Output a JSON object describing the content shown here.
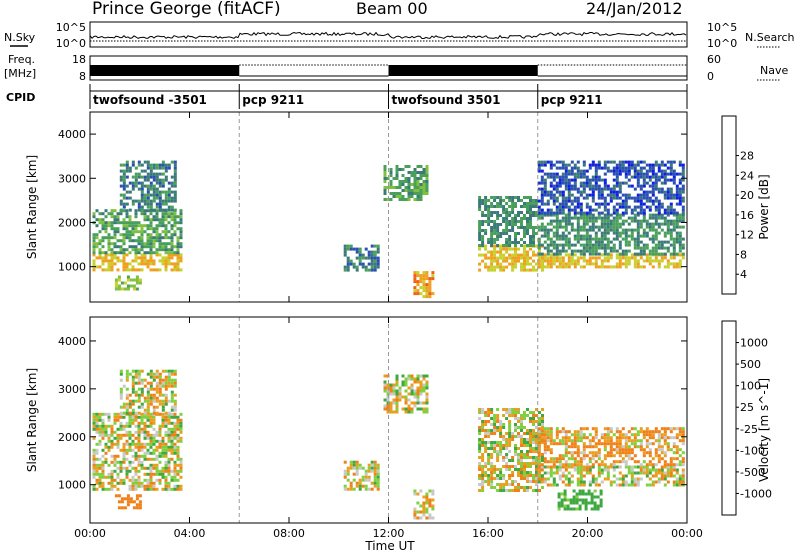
{
  "header": {
    "station": "Prince George (fitACF)",
    "beam": "Beam 00",
    "date": "24/Jan/2012"
  },
  "status_panel": {
    "left_labels": [
      "N.Sky",
      "Freq.",
      "[MHz]",
      "CPID"
    ],
    "right_labels": [
      "N.Search",
      "Nave"
    ],
    "left_ticks": [
      "10^5",
      "10^0",
      "18",
      "8"
    ],
    "right_ticks": [
      "10^5",
      "10^0",
      "60",
      "0"
    ],
    "cpid_segments": [
      {
        "label": "twofsound -3501",
        "start": 0,
        "end": 6
      },
      {
        "label": "pcp 9211",
        "start": 6,
        "end": 12
      },
      {
        "label": "twofsound 3501",
        "start": 12,
        "end": 18
      },
      {
        "label": "pcp 9211",
        "start": 18,
        "end": 24
      }
    ]
  },
  "x_axis": {
    "label": "Time UT",
    "ticks": [
      {
        "v": 0,
        "label": "00:00"
      },
      {
        "v": 4,
        "label": "04:00"
      },
      {
        "v": 8,
        "label": "08:00"
      },
      {
        "v": 12,
        "label": "12:00"
      },
      {
        "v": 16,
        "label": "16:00"
      },
      {
        "v": 20,
        "label": "20:00"
      },
      {
        "v": 24,
        "label": "00:00"
      }
    ]
  },
  "chart_data": [
    {
      "type": "heatmap",
      "title": "",
      "xlabel": "Time UT",
      "ylabel": "Slant Range [km]",
      "xlim": [
        0,
        24
      ],
      "ylim": [
        200,
        4500
      ],
      "yticks": [
        1000,
        2000,
        3000,
        4000
      ],
      "colorbar": {
        "label": "Power [dB]",
        "ticks": [
          4,
          8,
          12,
          16,
          20,
          24,
          28
        ],
        "colors": [
          "#1020e0",
          "#2a50b0",
          "#3b7a78",
          "#4aa05a",
          "#7fc040",
          "#c8d030",
          "#f0a020",
          "#f06018",
          "#e01010"
        ]
      },
      "bands": [
        {
          "t0": 0.1,
          "t1": 3.6,
          "r0": 900,
          "r1": 1300,
          "level": 24
        },
        {
          "t0": 0.1,
          "t1": 3.6,
          "r0": 1300,
          "r1": 2300,
          "level": 14
        },
        {
          "t0": 1.2,
          "t1": 3.4,
          "r0": 2300,
          "r1": 3400,
          "level": 10
        },
        {
          "t0": 1.0,
          "t1": 2.0,
          "r0": 500,
          "r1": 800,
          "level": 18
        },
        {
          "t0": 10.2,
          "t1": 11.6,
          "r0": 900,
          "r1": 1500,
          "level": 10
        },
        {
          "t0": 11.8,
          "t1": 13.6,
          "r0": 2500,
          "r1": 3300,
          "level": 14
        },
        {
          "t0": 13.0,
          "t1": 13.8,
          "r0": 300,
          "r1": 900,
          "level": 26
        },
        {
          "t0": 15.6,
          "t1": 18.2,
          "r0": 900,
          "r1": 1500,
          "level": 24
        },
        {
          "t0": 15.6,
          "t1": 18.0,
          "r0": 1500,
          "r1": 2600,
          "level": 12
        },
        {
          "t0": 18.0,
          "t1": 23.8,
          "r0": 1000,
          "r1": 1300,
          "level": 24
        },
        {
          "t0": 18.0,
          "t1": 23.8,
          "r0": 1300,
          "r1": 2200,
          "level": 12
        },
        {
          "t0": 18.0,
          "t1": 23.8,
          "r0": 2200,
          "r1": 3400,
          "level": 6
        }
      ]
    },
    {
      "type": "heatmap",
      "title": "",
      "xlabel": "Time UT",
      "ylabel": "Slant Range [km]",
      "xlim": [
        0,
        24
      ],
      "ylim": [
        200,
        4500
      ],
      "yticks": [
        1000,
        2000,
        3000,
        4000
      ],
      "colorbar": {
        "label": "Velocity [m s^-1]",
        "ticks": [
          1000,
          500,
          100,
          25,
          -25,
          -100,
          -500,
          -1000
        ],
        "colors": [
          "#2040a0",
          "#2a70b8",
          "#40a840",
          "#80d040",
          "#c8c8c8",
          "#e8a020",
          "#f08018",
          "#f04010",
          "#e01010"
        ]
      },
      "bands": [
        {
          "t0": 0.1,
          "t1": 3.6,
          "r0": 900,
          "r1": 2500,
          "level": 0
        },
        {
          "t0": 1.2,
          "t1": 3.4,
          "r0": 2500,
          "r1": 3400,
          "level": 0
        },
        {
          "t0": 1.0,
          "t1": 2.0,
          "r0": 500,
          "r1": 800,
          "level": -300
        },
        {
          "t0": 10.2,
          "t1": 11.6,
          "r0": 900,
          "r1": 1500,
          "level": 0
        },
        {
          "t0": 11.8,
          "t1": 13.6,
          "r0": 2500,
          "r1": 3300,
          "level": 0
        },
        {
          "t0": 13.0,
          "t1": 13.8,
          "r0": 300,
          "r1": 900,
          "level": -60
        },
        {
          "t0": 15.6,
          "t1": 18.2,
          "r0": 900,
          "r1": 2600,
          "level": 0
        },
        {
          "t0": 18.0,
          "t1": 23.8,
          "r0": 1000,
          "r1": 1400,
          "level": 0
        },
        {
          "t0": 18.0,
          "t1": 23.8,
          "r0": 1400,
          "r1": 2200,
          "level": -80
        },
        {
          "t0": 18.8,
          "t1": 20.5,
          "r0": 500,
          "r1": 900,
          "level": 200
        }
      ]
    }
  ]
}
